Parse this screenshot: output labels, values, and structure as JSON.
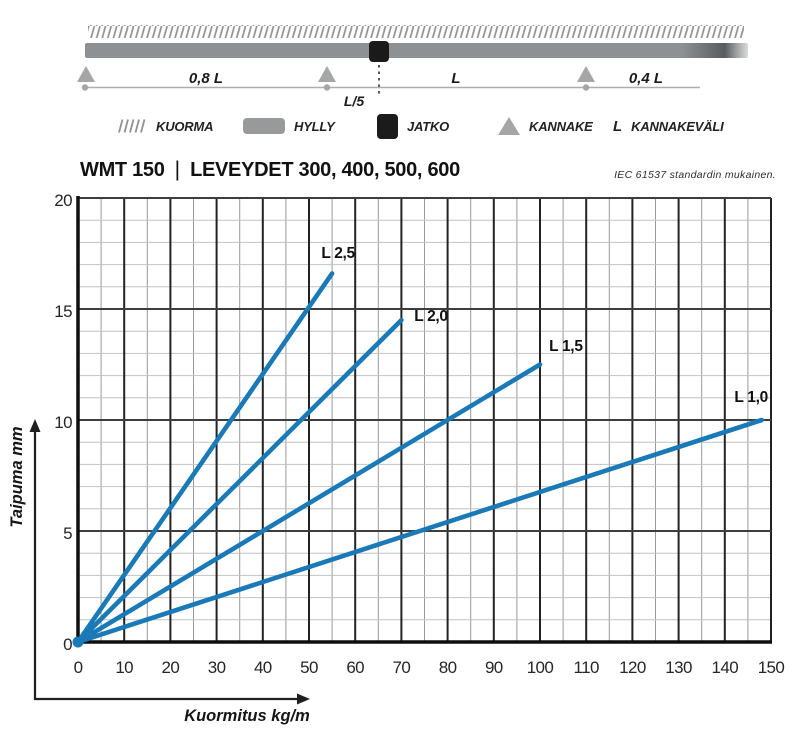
{
  "header": {
    "product": "WMT 150",
    "separator": "|",
    "widths_label": "LEVEYDET 300, 400, 500, 600",
    "standard_note": "IEC 61537 standardin mukainen."
  },
  "diagram": {
    "span_left_label": "0,8 L",
    "span_mid_label": "L",
    "span_right_label": "0,4 L",
    "joint_offset_label": "L/5"
  },
  "legend": {
    "letter_symbol": "L",
    "items": [
      {
        "icon": "load-hatch-icon",
        "label": "KUORMA"
      },
      {
        "icon": "shelf-bar-icon",
        "label": "HYLLY"
      },
      {
        "icon": "joint-square-icon",
        "label": "JATKO"
      },
      {
        "icon": "support-triangle-icon",
        "label": "KANNAKE"
      },
      {
        "icon": "letter-l-symbol",
        "label": "KANNAKEVÄLI"
      }
    ]
  },
  "chart_data": {
    "type": "line",
    "title": "",
    "xlabel": "Kuormitus kg/m",
    "ylabel": "Taipuma mm",
    "xlim": [
      0,
      150
    ],
    "ylim": [
      0,
      20
    ],
    "x_major_ticks": [
      0,
      10,
      20,
      30,
      40,
      50,
      60,
      70,
      80,
      90,
      100,
      110,
      120,
      130,
      140,
      150
    ],
    "x_minor_step": 5,
    "y_major_ticks": [
      0,
      5,
      10,
      15,
      20
    ],
    "y_minor_step": 1,
    "grid": true,
    "line_color": "#1a79b7",
    "series": [
      {
        "name": "L 2,5",
        "x": [
          0,
          55
        ],
        "y": [
          0,
          16.6
        ],
        "label_x": 56.3,
        "label_y": 17.3
      },
      {
        "name": "L 2,0",
        "x": [
          0,
          70
        ],
        "y": [
          0,
          14.5
        ],
        "label_x": 76.4,
        "label_y": 14.45
      },
      {
        "name": "L 1,5",
        "x": [
          0,
          100
        ],
        "y": [
          0,
          12.5
        ],
        "label_x": 105.6,
        "label_y": 13.1
      },
      {
        "name": "L 1,0",
        "x": [
          0,
          148
        ],
        "y": [
          0,
          10.0
        ],
        "label_x": 145.7,
        "label_y": 10.8
      }
    ]
  }
}
